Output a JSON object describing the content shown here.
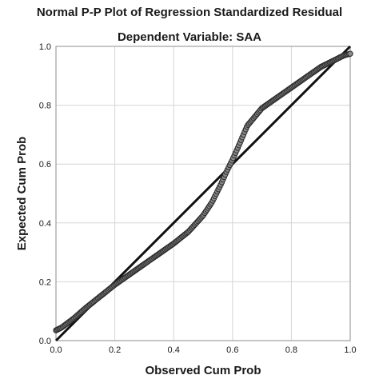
{
  "chart_data": {
    "type": "scatter",
    "title": "Normal P-P Plot of Regression Standardized Residual",
    "subtitle": "Dependent Variable: SAA",
    "xlabel": "Observed Cum Prob",
    "ylabel": "Expected Cum Prob",
    "xlim": [
      0,
      1
    ],
    "ylim": [
      0,
      1
    ],
    "xticks": [
      "0.0",
      "0.2",
      "0.4",
      "0.6",
      "0.8",
      "1.0"
    ],
    "yticks": [
      "0.0",
      "0.2",
      "0.4",
      "0.6",
      "0.8",
      "1.0"
    ],
    "grid": true,
    "reference_line": {
      "x": [
        0,
        1
      ],
      "y": [
        0,
        1
      ]
    },
    "curve_knots": {
      "x": [
        0.0,
        0.02,
        0.06,
        0.1,
        0.15,
        0.2,
        0.25,
        0.3,
        0.35,
        0.4,
        0.45,
        0.5,
        0.53,
        0.56,
        0.58,
        0.6,
        0.62,
        0.65,
        0.7,
        0.75,
        0.8,
        0.85,
        0.9,
        0.95,
        0.98,
        1.0
      ],
      "y": [
        0.035,
        0.045,
        0.075,
        0.11,
        0.15,
        0.19,
        0.225,
        0.26,
        0.295,
        0.33,
        0.37,
        0.425,
        0.47,
        0.53,
        0.575,
        0.615,
        0.66,
        0.73,
        0.79,
        0.825,
        0.86,
        0.895,
        0.93,
        0.955,
        0.97,
        0.975
      ]
    },
    "n_points": 260
  }
}
